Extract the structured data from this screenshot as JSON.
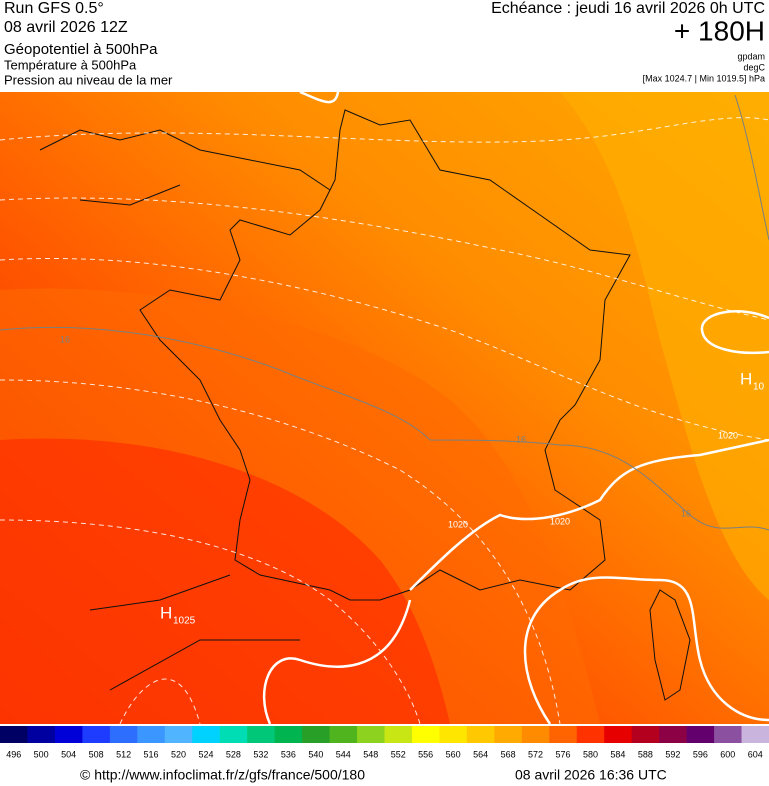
{
  "header": {
    "run": "Run GFS 0.5°",
    "run_date": "08 avril 2026 12Z",
    "layer1": "Géopotentiel à 500hPa",
    "layer2": "Température à 500hPa",
    "layer3": "Pression au niveau de la mer",
    "forecast": "Echéance : jeudi 16 avril 2026 0h UTC",
    "lead": "+ 180H",
    "unit1": "gpdam",
    "unit2": "degC",
    "pressure_range": "[Max 1024.7 | Min 1019.5] hPa"
  },
  "map": {
    "annotations": [
      {
        "symbol": "H",
        "value": "1025"
      },
      {
        "symbol": "H",
        "value": "10"
      }
    ],
    "contour_labels": [
      "16",
      "16",
      "16",
      "1020",
      "1020",
      "1020"
    ]
  },
  "colorbar": {
    "labels": [
      496,
      500,
      504,
      508,
      512,
      516,
      520,
      524,
      528,
      532,
      536,
      540,
      544,
      548,
      552,
      556,
      560,
      564,
      568,
      572,
      576,
      580,
      584,
      588,
      592,
      596,
      600,
      604
    ],
    "colors": [
      "#000064",
      "#0000a0",
      "#0000d8",
      "#1e3cff",
      "#2e6eff",
      "#3c96ff",
      "#50b4ff",
      "#00d2ff",
      "#00dcb4",
      "#00c878",
      "#00b450",
      "#28a028",
      "#50b41e",
      "#8cd21e",
      "#c8e614",
      "#ffff00",
      "#ffe600",
      "#ffc800",
      "#ffaa00",
      "#ff8c00",
      "#ff6400",
      "#ff3200",
      "#e60000",
      "#b4001e",
      "#8c0046",
      "#64006e",
      "#8c50a0",
      "#c8b4dc"
    ]
  },
  "footer": {
    "url": "© http://www.infoclimat.fr/z/gfs/france/500/180",
    "timestamp": "08 avril 2026 16:36 UTC"
  }
}
